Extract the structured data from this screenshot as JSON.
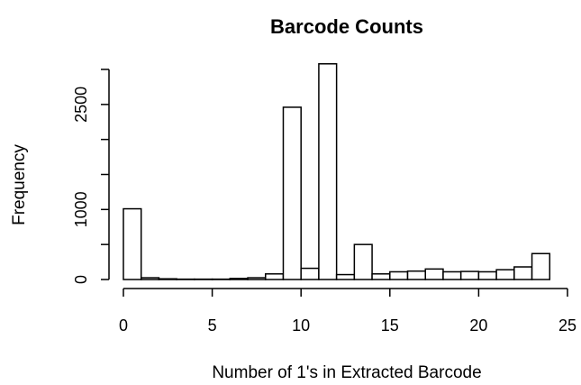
{
  "chart_data": {
    "type": "bar",
    "title": "Barcode Counts",
    "xlabel": "Number of 1's in Extracted Barcode",
    "ylabel": "Frequency",
    "bin_edges": [
      0,
      1,
      2,
      3,
      4,
      5,
      6,
      7,
      8,
      9,
      10,
      11,
      12,
      13,
      14,
      15,
      16,
      17,
      18,
      19,
      20,
      21,
      22,
      23,
      24
    ],
    "values": [
      1010,
      25,
      10,
      5,
      5,
      5,
      15,
      25,
      80,
      2460,
      160,
      3080,
      70,
      500,
      80,
      110,
      120,
      150,
      110,
      115,
      110,
      140,
      180,
      370
    ],
    "xlim": [
      0,
      25
    ],
    "ylim": [
      0,
      3000
    ],
    "x_ticks": [
      "0",
      "5",
      "10",
      "15",
      "20",
      "25"
    ],
    "y_ticks": [
      "0",
      "1000",
      "2500"
    ],
    "grid": false,
    "bar_fill": "#ffffff",
    "bar_stroke": "#000000"
  }
}
